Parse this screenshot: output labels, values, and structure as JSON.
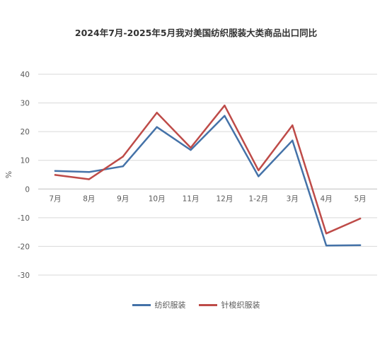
{
  "chart_data": {
    "type": "line",
    "title": "2024年7月-2025年5月我对美国纺织服装大类商品出口同比",
    "xlabel": "",
    "ylabel": "%",
    "ylim": [
      -30,
      40
    ],
    "yticks": [
      40,
      30,
      20,
      10,
      0,
      -10,
      -20,
      -30
    ],
    "categories": [
      "7月",
      "8月",
      "9月",
      "10月",
      "11月",
      "12月",
      "1-2月",
      "3月",
      "4月",
      "5月"
    ],
    "grid": true,
    "legend_position": "bottom",
    "series": [
      {
        "name": "纺织服装",
        "color": "#4472A8",
        "values": [
          6.3,
          5.9,
          7.9,
          21.6,
          13.6,
          25.5,
          4.4,
          16.9,
          -19.7,
          -19.6
        ]
      },
      {
        "name": "针梭织服装",
        "color": "#BE4B48",
        "values": [
          4.9,
          3.4,
          11.3,
          26.6,
          14.4,
          29.1,
          6.5,
          22.2,
          -15.5,
          -10.3
        ]
      }
    ]
  }
}
